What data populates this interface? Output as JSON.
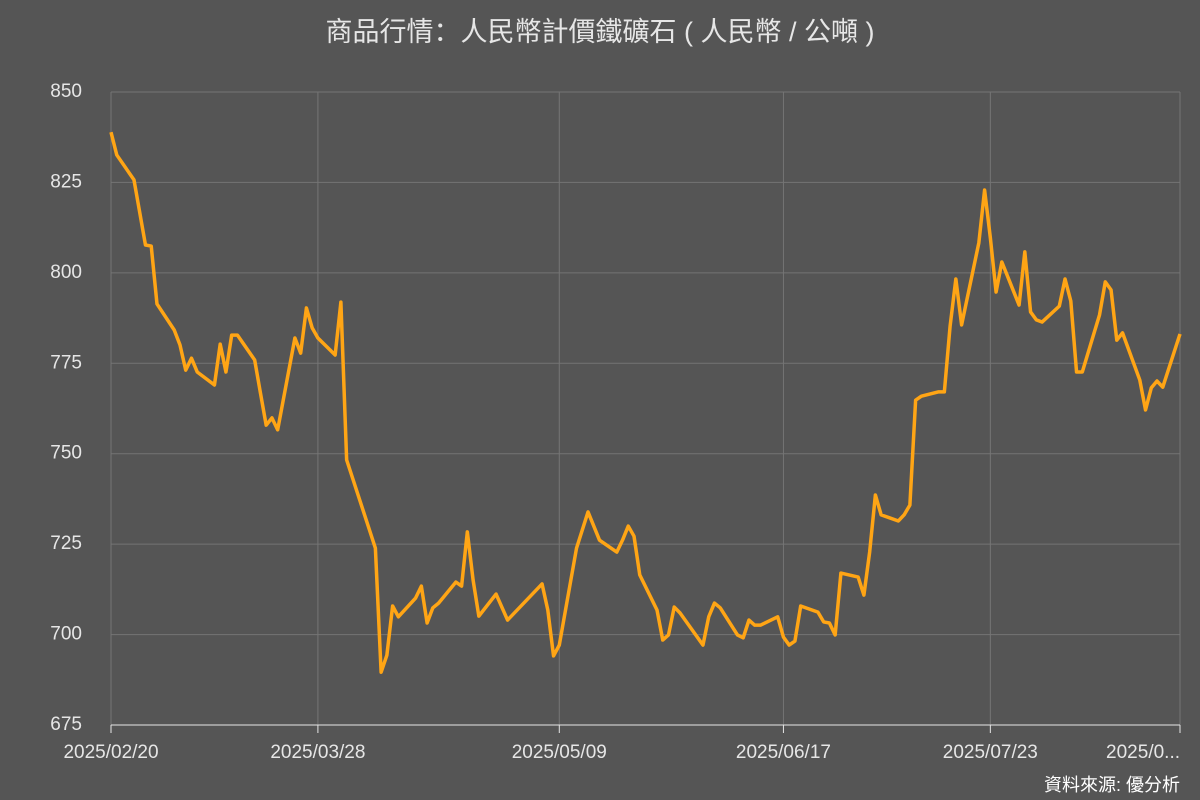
{
  "chart_data": {
    "type": "line",
    "title": "商品行情：人民幣計價鐵礦石 ( 人民幣 / 公噸 )",
    "source": "資料來源: 優分析",
    "x": [
      "2025/02/20",
      "2025/02/21",
      "2025/02/24",
      "2025/02/26",
      "2025/02/27",
      "2025/02/28",
      "2025/03/03",
      "2025/03/04",
      "2025/03/05",
      "2025/03/06",
      "2025/03/07",
      "2025/03/10",
      "2025/03/11",
      "2025/03/12",
      "2025/03/13",
      "2025/03/14",
      "2025/03/17",
      "2025/03/18",
      "2025/03/19",
      "2025/03/20",
      "2025/03/21",
      "2025/03/24",
      "2025/03/25",
      "2025/03/26",
      "2025/03/27",
      "2025/03/28",
      "2025/03/31",
      "2025/04/01",
      "2025/04/02",
      "2025/04/07",
      "2025/04/08",
      "2025/04/09",
      "2025/04/10",
      "2025/04/11",
      "2025/04/14",
      "2025/04/15",
      "2025/04/16",
      "2025/04/17",
      "2025/04/18",
      "2025/04/21",
      "2025/04/22",
      "2025/04/23",
      "2025/04/24",
      "2025/04/25",
      "2025/04/28",
      "2025/04/30",
      "2025/05/06",
      "2025/05/07",
      "2025/05/08",
      "2025/05/09",
      "2025/05/12",
      "2025/05/14",
      "2025/05/16",
      "2025/05/19",
      "2025/05/20",
      "2025/05/21",
      "2025/05/22",
      "2025/05/23",
      "2025/05/26",
      "2025/05/27",
      "2025/05/28",
      "2025/05/29",
      "2025/05/30",
      "2025/06/03",
      "2025/06/04",
      "2025/06/05",
      "2025/06/06",
      "2025/06/09",
      "2025/06/10",
      "2025/06/11",
      "2025/06/12",
      "2025/06/13",
      "2025/06/16",
      "2025/06/17",
      "2025/06/18",
      "2025/06/19",
      "2025/06/20",
      "2025/06/23",
      "2025/06/24",
      "2025/06/25",
      "2025/06/26",
      "2025/06/27",
      "2025/06/30",
      "2025/07/01",
      "2025/07/02",
      "2025/07/03",
      "2025/07/04",
      "2025/07/07",
      "2025/07/08",
      "2025/07/09",
      "2025/07/10",
      "2025/07/11",
      "2025/07/14",
      "2025/07/15",
      "2025/07/16",
      "2025/07/17",
      "2025/07/18",
      "2025/07/21",
      "2025/07/22",
      "2025/07/23",
      "2025/07/24",
      "2025/07/25",
      "2025/07/28",
      "2025/07/29",
      "2025/07/30",
      "2025/07/31",
      "2025/08/01",
      "2025/08/04",
      "2025/08/05",
      "2025/08/06",
      "2025/08/07",
      "2025/08/08",
      "2025/08/11",
      "2025/08/12",
      "2025/08/13",
      "2025/08/14",
      "2025/08/15",
      "2025/08/18",
      "2025/08/19",
      "2025/08/20",
      "2025/08/21",
      "2025/08/22",
      "2025/08/25"
    ],
    "series": [
      {
        "color": "#ffa515",
        "values": [
          838.9,
          832.6,
          825.7,
          807.7,
          807.4,
          791.4,
          784.2,
          780.1,
          773.1,
          776.4,
          772.6,
          769.0,
          780.3,
          772.6,
          782.8,
          782.8,
          775.9,
          766.8,
          757.9,
          759.9,
          756.6,
          782.0,
          777.8,
          790.3,
          784.8,
          782.0,
          777.3,
          791.9,
          748.3,
          723.9,
          689.6,
          694.3,
          707.9,
          704.9,
          710.1,
          713.4,
          703.2,
          707.4,
          708.7,
          714.5,
          713.4,
          728.4,
          715.1,
          705.1,
          711.2,
          704.0,
          714.0,
          706.8,
          694.1,
          697.1,
          723.9,
          733.9,
          726.1,
          722.8,
          726.1,
          730.0,
          727.2,
          716.5,
          706.8,
          698.5,
          699.9,
          707.6,
          706.0,
          697.1,
          704.9,
          708.7,
          707.4,
          699.9,
          699.1,
          704.0,
          702.6,
          702.6,
          704.9,
          699.3,
          697.1,
          698.2,
          707.9,
          706.2,
          703.5,
          703.2,
          699.9,
          717.0,
          715.9,
          710.9,
          722.8,
          738.6,
          733.1,
          731.4,
          733.1,
          735.8,
          764.8,
          765.9,
          767.1,
          767.1,
          785.3,
          798.3,
          785.6,
          808.3,
          822.9,
          809.7,
          794.7,
          803.0,
          791.1,
          805.8,
          789.2,
          787.0,
          786.4,
          790.8,
          798.3,
          792.2,
          772.6,
          772.6,
          788.4,
          797.5,
          795.3,
          781.4,
          783.4,
          770.4,
          762.1,
          768.2,
          770.1,
          768.4,
          783.1
        ]
      }
    ],
    "xlim": [
      "2025/02/20",
      "2025/08/25"
    ],
    "xticks": [
      "2025/02/20",
      "2025/03/28",
      "2025/05/09",
      "2025/06/17",
      "2025/07/23",
      {
        "value": "2025/08/25",
        "label": "2025/0..."
      }
    ],
    "ylim": [
      675,
      850
    ],
    "yticks": [
      675,
      700,
      725,
      750,
      775,
      800,
      825,
      850
    ],
    "grid": true
  }
}
